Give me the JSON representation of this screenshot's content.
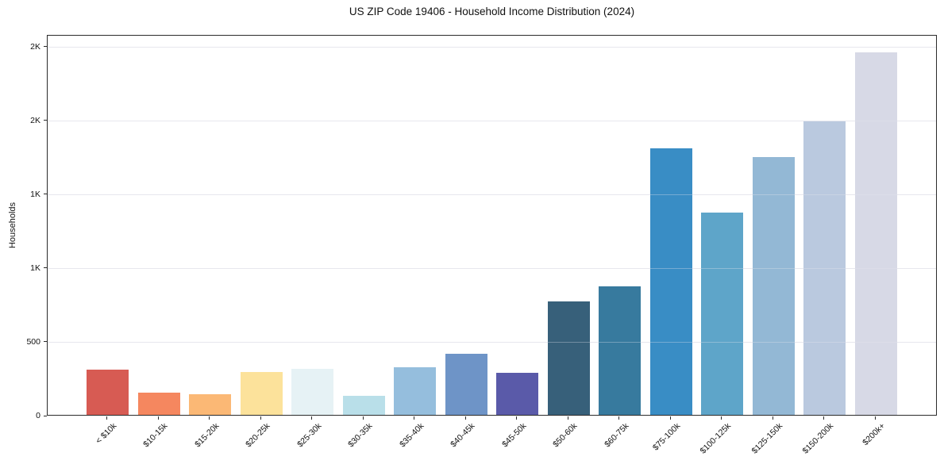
{
  "chart_data": {
    "type": "bar",
    "title": "US ZIP Code 19406 - Household Income Distribution (2024)",
    "xlabel": "",
    "ylabel": "Households",
    "categories": [
      "< $10k",
      "$10-15k",
      "$15-20k",
      "$20-25k",
      "$25-30k",
      "$30-35k",
      "$35-40k",
      "$40-45k",
      "$45-50k",
      "$50-60k",
      "$60-75k",
      "$75-100k",
      "$100-125k",
      "$125-150k",
      "$150-200k",
      "$200k+"
    ],
    "values": [
      305,
      150,
      140,
      290,
      310,
      130,
      320,
      415,
      285,
      770,
      870,
      1805,
      1370,
      1745,
      1990,
      2455
    ],
    "bar_colors": [
      "#d75b53",
      "#f5875f",
      "#fbb875",
      "#fce29b",
      "#e6f2f5",
      "#b9dfe9",
      "#95bedd",
      "#6e94c7",
      "#5a5aa9",
      "#37607a",
      "#377a9e",
      "#398dc5",
      "#5ea5c9",
      "#93b8d5",
      "#bac9df",
      "#d7d9e6"
    ],
    "ylim": [
      0,
      2580
    ],
    "yticks": [
      {
        "value": 0,
        "label": "0"
      },
      {
        "value": 500,
        "label": "500"
      },
      {
        "value": 1000,
        "label": "1K"
      },
      {
        "value": 1500,
        "label": "1K"
      },
      {
        "value": 2000,
        "label": "2K"
      },
      {
        "value": 2500,
        "label": "2K"
      }
    ],
    "grid": "horizontal",
    "grid_color": "#e8e8ee",
    "axis_color": "#2b2b2b",
    "background": "#ffffff",
    "legend": "none"
  }
}
